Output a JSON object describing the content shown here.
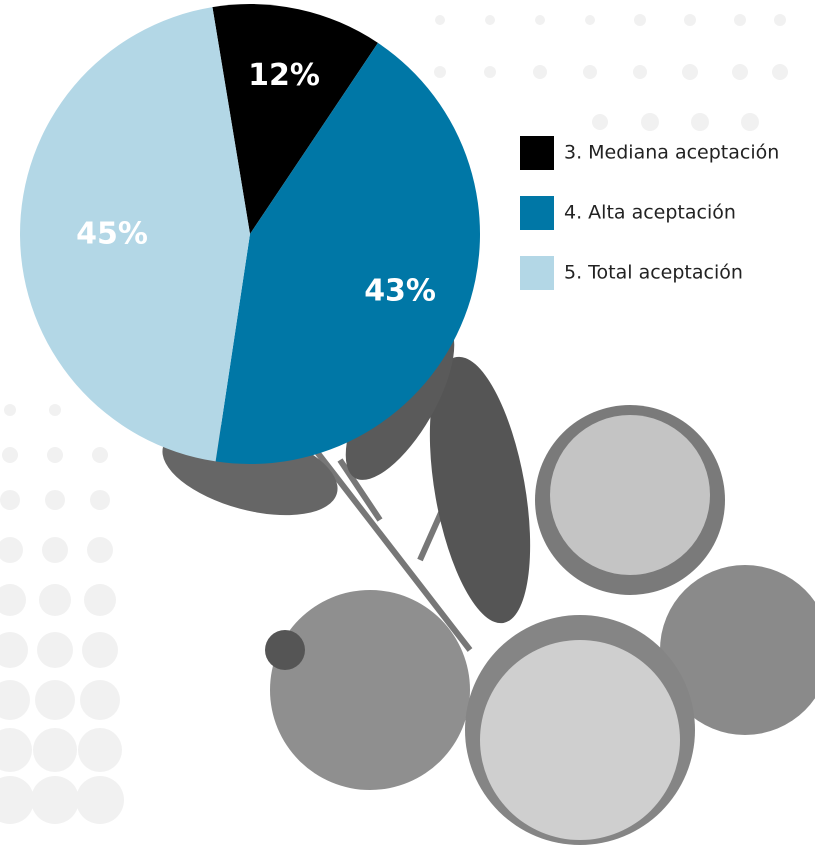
{
  "chart_data": {
    "type": "pie",
    "categories": [
      "3. Mediana aceptación",
      "4. Alta aceptación",
      "5. Total aceptación"
    ],
    "values": [
      12,
      43,
      45
    ],
    "value_labels": [
      "12%",
      "43%",
      "45%"
    ],
    "colors": [
      "#000000",
      "#0077a6",
      "#b3d7e6"
    ],
    "legend": "right"
  }
}
